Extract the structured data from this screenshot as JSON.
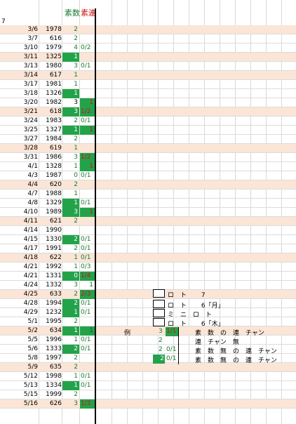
{
  "header": {
    "row_number": "7",
    "col_prime": "素数",
    "col_consec": "素連"
  },
  "colors": {
    "green": "#22a34a",
    "red": "#d01010",
    "band": "#fbe5d6"
  },
  "rows": [
    {
      "date": "3/6",
      "num": "1978",
      "prime": "2",
      "pg": false,
      "cons": "",
      "cs": "",
      "alt": true
    },
    {
      "date": "3/7",
      "num": "616",
      "prime": "2",
      "pg": false,
      "cons": "",
      "cs": "",
      "alt": false
    },
    {
      "date": "3/10",
      "num": "1979",
      "prime": "4",
      "pg": false,
      "cons": "0/2",
      "cs": "green",
      "alt": false
    },
    {
      "date": "3/11",
      "num": "1325",
      "prime": "1",
      "pg": true,
      "cons": "",
      "cs": "",
      "alt": true
    },
    {
      "date": "3/13",
      "num": "1980",
      "prime": "3",
      "pg": false,
      "cons": "0/1",
      "cs": "green",
      "alt": false
    },
    {
      "date": "3/14",
      "num": "617",
      "prime": "1",
      "pg": false,
      "cons": "",
      "cs": "",
      "alt": true
    },
    {
      "date": "3/17",
      "num": "1981",
      "prime": "1",
      "pg": false,
      "cons": "",
      "cs": "",
      "alt": false
    },
    {
      "date": "3/18",
      "num": "1326",
      "prime": "1",
      "pg": true,
      "cons": "",
      "cs": "",
      "alt": false
    },
    {
      "date": "3/20",
      "num": "1982",
      "prime": "3",
      "pg": false,
      "pw": true,
      "cons": "1",
      "cs": "fill-red-right",
      "alt": false
    },
    {
      "date": "3/21",
      "num": "618",
      "prime": "3",
      "pg": true,
      "cons": "1/2",
      "cs": "fill-red",
      "alt": true
    },
    {
      "date": "3/24",
      "num": "1983",
      "prime": "2",
      "pg": false,
      "cons": "0/1",
      "cs": "green",
      "alt": false
    },
    {
      "date": "3/25",
      "num": "1327",
      "prime": "1",
      "pg": true,
      "cons": "1",
      "cs": "fill-red-right",
      "alt": false
    },
    {
      "date": "3/27",
      "num": "1984",
      "prime": "2",
      "pg": false,
      "cons": "",
      "cs": "",
      "alt": false
    },
    {
      "date": "3/28",
      "num": "619",
      "prime": "1",
      "pg": false,
      "cons": "",
      "cs": "",
      "alt": true
    },
    {
      "date": "3/31",
      "num": "1986",
      "prime": "3",
      "pg": false,
      "cons": "1/2",
      "cs": "fill-red",
      "alt": false
    },
    {
      "date": "4/1",
      "num": "1328",
      "prime": "1",
      "pg": false,
      "cons": "1",
      "cs": "fill-red-right",
      "alt": false
    },
    {
      "date": "4/3",
      "num": "1987",
      "prime": "0",
      "pg": false,
      "cons": "0/1",
      "cs": "green",
      "alt": false
    },
    {
      "date": "4/4",
      "num": "620",
      "prime": "2",
      "pg": false,
      "cons": "",
      "cs": "",
      "alt": true
    },
    {
      "date": "4/7",
      "num": "1988",
      "prime": "1",
      "pg": false,
      "cons": "",
      "cs": "",
      "alt": false
    },
    {
      "date": "4/8",
      "num": "1329",
      "prime": "1",
      "pg": true,
      "cons": "0/1",
      "cs": "green",
      "alt": false
    },
    {
      "date": "4/10",
      "num": "1989",
      "prime": "3",
      "pg": true,
      "cons": "1",
      "cs": "fill-red-right",
      "alt": false
    },
    {
      "date": "4/11",
      "num": "621",
      "prime": "2",
      "pg": false,
      "cons": "",
      "cs": "",
      "alt": true
    },
    {
      "date": "4/14",
      "num": "1990",
      "prime": "",
      "pg": false,
      "cons": "",
      "cs": "",
      "alt": false
    },
    {
      "date": "4/15",
      "num": "1330",
      "prime": "2",
      "pg": true,
      "cons": "0/1",
      "cs": "green",
      "alt": false
    },
    {
      "date": "4/17",
      "num": "1991",
      "prime": "2",
      "pg": false,
      "cons": "0/1",
      "cs": "green",
      "alt": false
    },
    {
      "date": "4/18",
      "num": "622",
      "prime": "1",
      "pg": false,
      "cons": "0/1",
      "cs": "green",
      "alt": true
    },
    {
      "date": "4/21",
      "num": "1992",
      "prime": "1",
      "pg": false,
      "cons": "0/3",
      "cs": "green",
      "alt": false
    },
    {
      "date": "4/21",
      "num": "1331",
      "prime": "0",
      "pg": true,
      "cons": "1/4",
      "cs": "fill-red",
      "alt": false
    },
    {
      "date": "4/24",
      "num": "1332",
      "prime": "3",
      "pg": false,
      "cons": "1",
      "cs": "dark",
      "alt": false
    },
    {
      "date": "4/25",
      "num": "633",
      "prime": "2",
      "pg": false,
      "cons": "2/3",
      "cs": "fill-red",
      "alt": true
    },
    {
      "date": "4/28",
      "num": "1994",
      "prime": "2",
      "pg": true,
      "cons": "0/1",
      "cs": "green",
      "alt": false
    },
    {
      "date": "4/29",
      "num": "1232",
      "prime": "1",
      "pg": true,
      "cons": "0/1",
      "cs": "green",
      "alt": false
    },
    {
      "date": "5/1",
      "num": "1995",
      "prime": "2",
      "pg": false,
      "cons": "",
      "cs": "",
      "alt": false
    },
    {
      "date": "5/2",
      "num": "634",
      "prime": "1",
      "pg": true,
      "cons": "1",
      "cs": "fill-dark-right",
      "alt": true
    },
    {
      "date": "5/5",
      "num": "1996",
      "prime": "1",
      "pg": false,
      "cons": "0/1",
      "cs": "green",
      "alt": false
    },
    {
      "date": "5/6",
      "num": "1333",
      "prime": "2",
      "pg": true,
      "cons": "0/1",
      "cs": "green",
      "alt": false
    },
    {
      "date": "5/8",
      "num": "1997",
      "prime": "2",
      "pg": false,
      "cons": "",
      "cs": "",
      "alt": false
    },
    {
      "date": "5/9",
      "num": "635",
      "prime": "2",
      "pg": false,
      "cons": "",
      "cs": "",
      "alt": true
    },
    {
      "date": "5/12",
      "num": "1998",
      "prime": "1",
      "pg": false,
      "cons": "0/1",
      "cs": "green",
      "alt": false
    },
    {
      "date": "5/13",
      "num": "1334",
      "prime": "1",
      "pg": true,
      "cons": "0/1",
      "cs": "green",
      "alt": false
    },
    {
      "date": "5/15",
      "num": "1999",
      "prime": "2",
      "pg": false,
      "cons": "",
      "cs": "",
      "alt": false
    },
    {
      "date": "5/16",
      "num": "626",
      "prime": "3",
      "pg": false,
      "cons": "1/3",
      "cs": "fill-red",
      "alt": true
    }
  ],
  "legend": {
    "l1": "ロ　ト　　 7",
    "l2": "ロ　ト　　 6「月」",
    "l3": "ミ　ニ　ロ　ト",
    "l4": "ロ　ト　　 6「木」",
    "example_label": "例",
    "e1_num": "3",
    "e1_cons": "1/1",
    "e1_text": "素　数　の　連　チャン",
    "e2_num": "2",
    "e2_text": "連　チャン　無",
    "e3_num": "2",
    "e3_cons": "0/1",
    "e3_text": "素　数　無　の　連　チャン",
    "e4_num": "2",
    "e4_cons": "0/1",
    "e4_text": "素　数　無　の　連　チャン"
  }
}
